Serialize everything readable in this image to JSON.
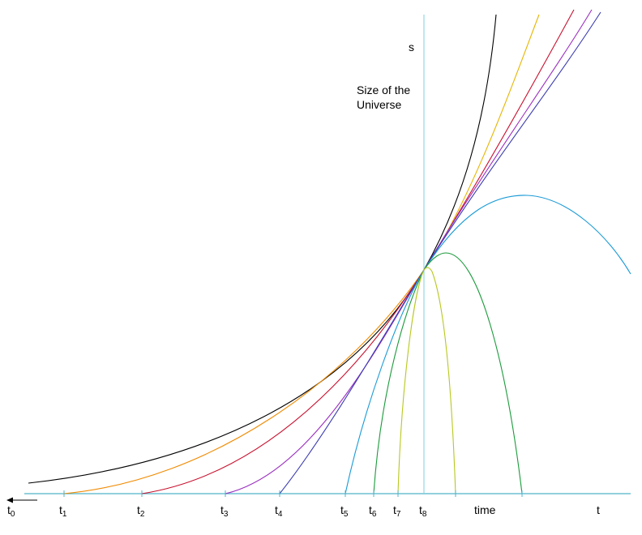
{
  "diagram": {
    "axis_labels": {
      "s": "s",
      "size": [
        "Size of the",
        "Universe"
      ],
      "time": "time",
      "t": "t"
    },
    "ticks": [
      {
        "base": "t",
        "sub": "0"
      },
      {
        "base": "t",
        "sub": "1"
      },
      {
        "base": "t",
        "sub": "2"
      },
      {
        "base": "t",
        "sub": "3"
      },
      {
        "base": "t",
        "sub": "4"
      },
      {
        "base": "t",
        "sub": "5"
      },
      {
        "base": "t",
        "sub": "6"
      },
      {
        "base": "t",
        "sub": "7"
      },
      {
        "base": "t",
        "sub": "8"
      }
    ]
  }
}
